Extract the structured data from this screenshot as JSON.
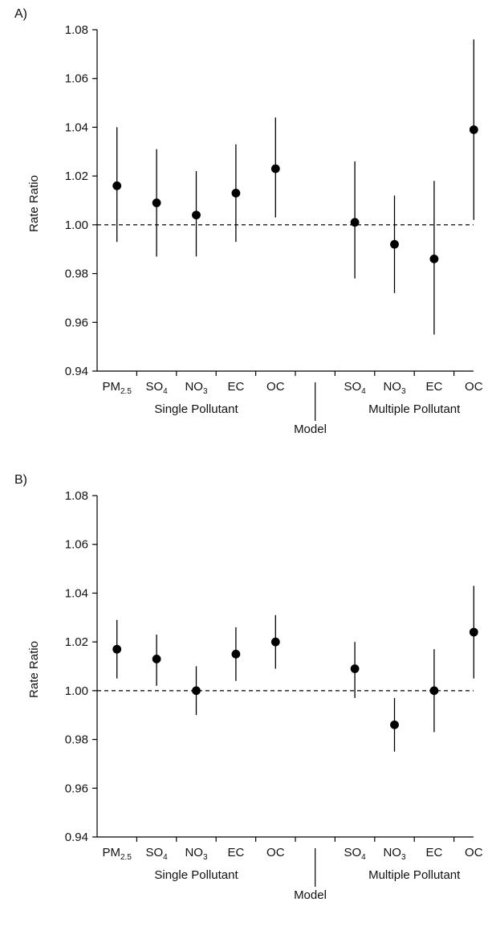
{
  "chart_data": [
    {
      "type": "scatter",
      "panel_label": "A)",
      "ylabel": "Rate Ratio",
      "xlabel": "Model",
      "ylim": [
        0.94,
        1.08
      ],
      "yticks": [
        "0.94",
        "0.96",
        "0.98",
        "1.00",
        "1.02",
        "1.04",
        "1.06",
        "1.08"
      ],
      "reference_line": 1.0,
      "groups": [
        "Single Pollutant",
        "Multiple Pollutant"
      ],
      "categories": [
        {
          "base": "PM",
          "sub": "2.5",
          "group": 0
        },
        {
          "base": "SO",
          "sub": "4",
          "group": 0
        },
        {
          "base": "NO",
          "sub": "3",
          "group": 0
        },
        {
          "base": "EC",
          "sub": "",
          "group": 0
        },
        {
          "base": "OC",
          "sub": "",
          "group": 0
        },
        {
          "base": "",
          "sub": "",
          "group": -1
        },
        {
          "base": "SO",
          "sub": "4",
          "group": 1
        },
        {
          "base": "NO",
          "sub": "3",
          "group": 1
        },
        {
          "base": "EC",
          "sub": "",
          "group": 1
        },
        {
          "base": "OC",
          "sub": "",
          "group": 1
        }
      ],
      "points": [
        {
          "index": 0,
          "estimate": 1.016,
          "lower": 0.993,
          "upper": 1.04
        },
        {
          "index": 1,
          "estimate": 1.009,
          "lower": 0.987,
          "upper": 1.031
        },
        {
          "index": 2,
          "estimate": 1.004,
          "lower": 0.987,
          "upper": 1.022
        },
        {
          "index": 3,
          "estimate": 1.013,
          "lower": 0.993,
          "upper": 1.033
        },
        {
          "index": 4,
          "estimate": 1.023,
          "lower": 1.003,
          "upper": 1.044
        },
        {
          "index": 6,
          "estimate": 1.001,
          "lower": 0.978,
          "upper": 1.026
        },
        {
          "index": 7,
          "estimate": 0.992,
          "lower": 0.972,
          "upper": 1.012
        },
        {
          "index": 8,
          "estimate": 0.986,
          "lower": 0.955,
          "upper": 1.018
        },
        {
          "index": 9,
          "estimate": 1.039,
          "lower": 1.002,
          "upper": 1.076
        }
      ]
    },
    {
      "type": "scatter",
      "panel_label": "B)",
      "ylabel": "Rate Ratio",
      "xlabel": "Model",
      "ylim": [
        0.94,
        1.08
      ],
      "yticks": [
        "0.94",
        "0.96",
        "0.98",
        "1.00",
        "1.02",
        "1.04",
        "1.06",
        "1.08"
      ],
      "reference_line": 1.0,
      "groups": [
        "Single Pollutant",
        "Multiple Pollutant"
      ],
      "categories": [
        {
          "base": "PM",
          "sub": "2.5",
          "group": 0
        },
        {
          "base": "SO",
          "sub": "4",
          "group": 0
        },
        {
          "base": "NO",
          "sub": "3",
          "group": 0
        },
        {
          "base": "EC",
          "sub": "",
          "group": 0
        },
        {
          "base": "OC",
          "sub": "",
          "group": 0
        },
        {
          "base": "",
          "sub": "",
          "group": -1
        },
        {
          "base": "SO",
          "sub": "4",
          "group": 1
        },
        {
          "base": "NO",
          "sub": "3",
          "group": 1
        },
        {
          "base": "EC",
          "sub": "",
          "group": 1
        },
        {
          "base": "OC",
          "sub": "",
          "group": 1
        }
      ],
      "points": [
        {
          "index": 0,
          "estimate": 1.017,
          "lower": 1.005,
          "upper": 1.029
        },
        {
          "index": 1,
          "estimate": 1.013,
          "lower": 1.002,
          "upper": 1.023
        },
        {
          "index": 2,
          "estimate": 1.0,
          "lower": 0.99,
          "upper": 1.01
        },
        {
          "index": 3,
          "estimate": 1.015,
          "lower": 1.004,
          "upper": 1.026
        },
        {
          "index": 4,
          "estimate": 1.02,
          "lower": 1.009,
          "upper": 1.031
        },
        {
          "index": 6,
          "estimate": 1.009,
          "lower": 0.997,
          "upper": 1.02
        },
        {
          "index": 7,
          "estimate": 0.986,
          "lower": 0.975,
          "upper": 0.997
        },
        {
          "index": 8,
          "estimate": 1.0,
          "lower": 0.983,
          "upper": 1.017
        },
        {
          "index": 9,
          "estimate": 1.024,
          "lower": 1.005,
          "upper": 1.043
        }
      ]
    }
  ]
}
